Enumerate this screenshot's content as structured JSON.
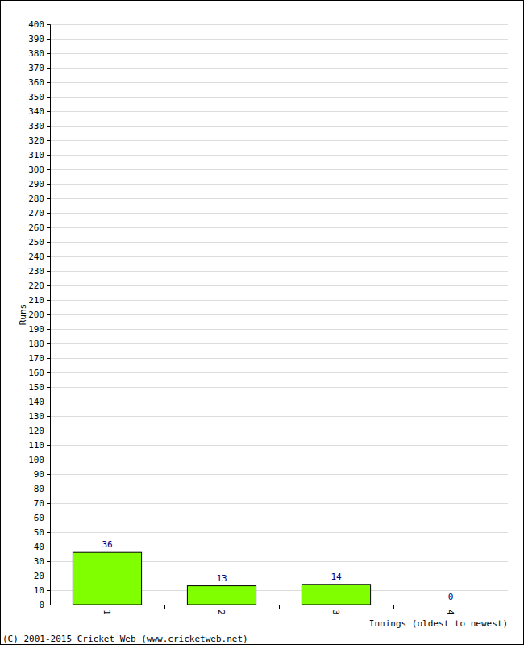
{
  "chart_data": {
    "type": "bar",
    "categories": [
      "1",
      "2",
      "3",
      "4"
    ],
    "values": [
      36,
      13,
      14,
      0
    ],
    "color": "#80ff00",
    "x_label": "Innings (oldest to newest)",
    "y_label": "Runs",
    "annotations": [
      "(C) 2001-2015 Cricket Web (www.cricketweb.net)"
    ],
    "ylim": [
      0,
      400
    ],
    "yticks": [
      0,
      10,
      20,
      30,
      40,
      50,
      60,
      70,
      80,
      90,
      100,
      110,
      120,
      130,
      140,
      150,
      160,
      170,
      180,
      190,
      200,
      210,
      220,
      230,
      240,
      250,
      260,
      270,
      280,
      290,
      300,
      310,
      320,
      330,
      340,
      350,
      360,
      370,
      380,
      390,
      400
    ],
    "grid": true,
    "data_labels": true
  }
}
